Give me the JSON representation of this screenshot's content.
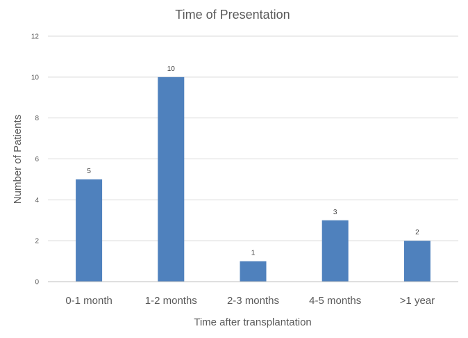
{
  "chart_data": {
    "type": "bar",
    "title": "Time of Presentation",
    "xlabel": "Time after transplantation",
    "ylabel": "Number of Patients",
    "categories": [
      "0-1 month",
      "1-2 months",
      "2-3 months",
      "4-5 months",
      ">1 year"
    ],
    "values": [
      5,
      10,
      1,
      3,
      2
    ],
    "data_labels": [
      "5",
      "10",
      "1",
      "3",
      "2"
    ],
    "ylim": [
      0,
      12
    ],
    "yticks": [
      0,
      2,
      4,
      6,
      8,
      10,
      12
    ],
    "grid": true,
    "legend": "none",
    "bar_color": "#4f81bd"
  }
}
